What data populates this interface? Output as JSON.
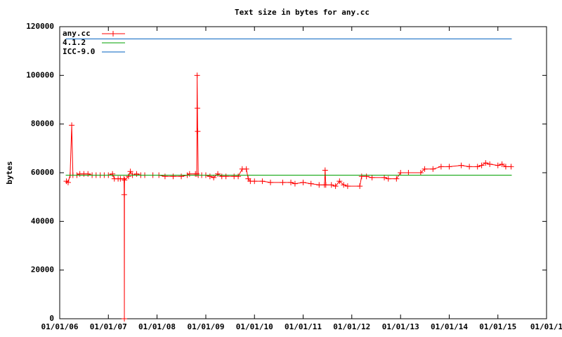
{
  "chart_data": {
    "type": "line",
    "title": "Text size in bytes for any.cc",
    "y_label": "bytes",
    "xlim": [
      "2006-01-01",
      "2016-01-01"
    ],
    "xticks": [
      {
        "value": "2006-01-01",
        "label": "01/01/06"
      },
      {
        "value": "2007-01-01",
        "label": "01/01/07"
      },
      {
        "value": "2008-01-01",
        "label": "01/01/08"
      },
      {
        "value": "2009-01-01",
        "label": "01/01/09"
      },
      {
        "value": "2010-01-01",
        "label": "01/01/10"
      },
      {
        "value": "2011-01-01",
        "label": "01/01/11"
      },
      {
        "value": "2012-01-01",
        "label": "01/01/12"
      },
      {
        "value": "2013-01-01",
        "label": "01/01/13"
      },
      {
        "value": "2014-01-01",
        "label": "01/01/14"
      },
      {
        "value": "2015-01-01",
        "label": "01/01/15"
      },
      {
        "value": "2016-01-01",
        "label": "01/01/1"
      }
    ],
    "ylim": [
      0,
      120000
    ],
    "yticks": [
      0,
      20000,
      40000,
      60000,
      80000,
      100000,
      120000
    ],
    "grid": false,
    "legend": "top-left",
    "series": [
      {
        "name": "any.cc",
        "color": "#ff0000",
        "marker": "+",
        "x": [
          "2006-02-20",
          "2006-03-05",
          "2006-03-20",
          "2006-04-01",
          "2006-04-10",
          "2006-05-10",
          "2006-06-01",
          "2006-07-01",
          "2006-08-01",
          "2006-09-01",
          "2006-10-01",
          "2006-11-01",
          "2006-12-01",
          "2007-01-01",
          "2007-02-01",
          "2007-02-15",
          "2007-03-15",
          "2007-04-01",
          "2007-04-28",
          "2007-04-30",
          "2007-05-01",
          "2007-05-02",
          "2007-06-01",
          "2007-06-15",
          "2007-07-01",
          "2007-08-01",
          "2007-09-01",
          "2007-10-01",
          "2007-12-01",
          "2008-01-15",
          "2008-03-01",
          "2008-05-01",
          "2008-07-01",
          "2008-08-15",
          "2008-09-01",
          "2008-10-15",
          "2008-10-25",
          "2008-10-28",
          "2008-10-30",
          "2008-11-01",
          "2008-11-05",
          "2008-12-01",
          "2009-01-01",
          "2009-02-01",
          "2009-03-01",
          "2009-04-01",
          "2009-05-01",
          "2009-06-01",
          "2009-08-01",
          "2009-09-01",
          "2009-10-01",
          "2009-11-01",
          "2009-11-15",
          "2009-12-01",
          "2010-01-01",
          "2010-03-01",
          "2010-05-01",
          "2010-08-01",
          "2010-10-01",
          "2010-11-01",
          "2011-01-01",
          "2011-03-01",
          "2011-05-01",
          "2011-06-10",
          "2011-06-15",
          "2011-06-20",
          "2011-08-01",
          "2011-09-01",
          "2011-10-01",
          "2011-11-01",
          "2011-12-01",
          "2012-03-01",
          "2012-03-15",
          "2012-04-20",
          "2012-06-01",
          "2012-09-01",
          "2012-10-01",
          "2012-12-01",
          "2013-01-01",
          "2013-03-01",
          "2013-06-01",
          "2013-07-01",
          "2013-09-01",
          "2013-11-01",
          "2014-01-01",
          "2014-04-01",
          "2014-06-01",
          "2014-08-01",
          "2014-09-01",
          "2014-10-01",
          "2014-11-01",
          "2015-01-01",
          "2015-02-01",
          "2015-03-01",
          "2015-04-10"
        ],
        "values": [
          56500,
          56000,
          59000,
          79500,
          59000,
          59000,
          59500,
          59500,
          59500,
          59000,
          59000,
          59000,
          59000,
          59000,
          59500,
          57500,
          57500,
          57500,
          57500,
          51000,
          0,
          57000,
          58500,
          60500,
          59000,
          59500,
          59000,
          59000,
          59000,
          59000,
          58500,
          58500,
          58500,
          59000,
          59500,
          59500,
          59500,
          100000,
          86500,
          77000,
          59000,
          59000,
          59000,
          58500,
          58000,
          59500,
          58500,
          58500,
          58500,
          58500,
          61500,
          61500,
          57500,
          56500,
          56500,
          56500,
          56000,
          56000,
          56000,
          55500,
          56000,
          55500,
          55000,
          55000,
          61000,
          55000,
          55000,
          54500,
          56500,
          55000,
          54500,
          54500,
          58500,
          58500,
          58000,
          58000,
          57500,
          57500,
          60000,
          60000,
          60000,
          61500,
          61500,
          62500,
          62500,
          63000,
          62500,
          62500,
          63000,
          64000,
          63500,
          63000,
          63500,
          62500,
          62500
        ]
      },
      {
        "name": "4.1.2",
        "color": "#00a000",
        "x": [
          "2006-02-15",
          "2015-04-15"
        ],
        "values": [
          59000,
          59000
        ]
      },
      {
        "name": "ICC-9.0",
        "color": "#0060c0",
        "x": [
          "2006-02-15",
          "2015-04-15"
        ],
        "values": [
          115000,
          115000
        ]
      }
    ]
  }
}
